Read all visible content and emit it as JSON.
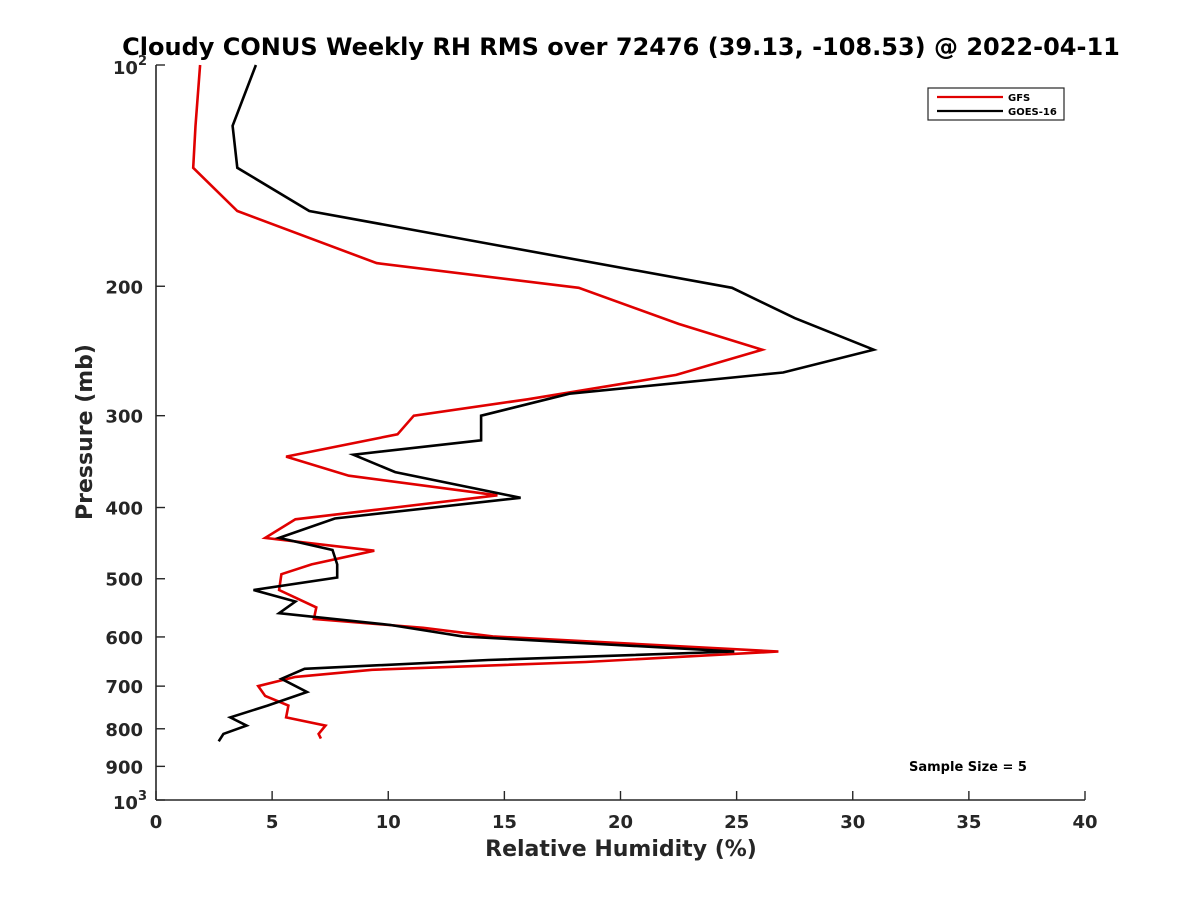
{
  "chart_data": {
    "type": "line",
    "title": "Cloudy CONUS Weekly RH RMS over 72476 (39.13, -108.53) @ 2022-04-11",
    "xlabel": "Relative Humidity (%)",
    "ylabel": "Pressure (mb)",
    "xlim": [
      0,
      40
    ],
    "ylim": [
      100,
      1000
    ],
    "y_scale": "log",
    "y_reversed": true,
    "grid": false,
    "legend_position": "top-right",
    "x_ticks": [
      0,
      5,
      10,
      15,
      20,
      25,
      30,
      35,
      40
    ],
    "x_tick_labels": [
      "0",
      "5",
      "10",
      "15",
      "20",
      "25",
      "30",
      "35",
      "40"
    ],
    "y_ticks": [
      {
        "value": 100,
        "base": "10",
        "exp": "2"
      },
      {
        "value": 200,
        "label": "200"
      },
      {
        "value": 300,
        "label": "300"
      },
      {
        "value": 400,
        "label": "400"
      },
      {
        "value": 500,
        "label": "500"
      },
      {
        "value": 600,
        "label": "600"
      },
      {
        "value": 700,
        "label": "700"
      },
      {
        "value": 800,
        "label": "800"
      },
      {
        "value": 900,
        "label": "900"
      },
      {
        "value": 1000,
        "base": "10",
        "exp": "3"
      }
    ],
    "series": [
      {
        "name": "GFS",
        "color": "#e00000",
        "points": [
          [
            1.9,
            100
          ],
          [
            1.7,
            121
          ],
          [
            1.6,
            138
          ],
          [
            3.5,
            158
          ],
          [
            9.5,
            186
          ],
          [
            18.2,
            201
          ],
          [
            22.5,
            225
          ],
          [
            26.1,
            244
          ],
          [
            22.4,
            264
          ],
          [
            16.0,
            285
          ],
          [
            11.1,
            300
          ],
          [
            10.4,
            318
          ],
          [
            5.6,
            341
          ],
          [
            8.3,
            362
          ],
          [
            14.7,
            385
          ],
          [
            6.0,
            415
          ],
          [
            4.7,
            440
          ],
          [
            9.4,
            458
          ],
          [
            6.7,
            478
          ],
          [
            5.4,
            493
          ],
          [
            5.3,
            518
          ],
          [
            6.9,
            547
          ],
          [
            6.8,
            567
          ],
          [
            11.5,
            583
          ],
          [
            14.5,
            599
          ],
          [
            26.8,
            628
          ],
          [
            18.5,
            649
          ],
          [
            9.3,
            665
          ],
          [
            6.0,
            680
          ],
          [
            4.4,
            700
          ],
          [
            4.7,
            722
          ],
          [
            5.7,
            744
          ],
          [
            5.6,
            772
          ],
          [
            7.3,
            792
          ],
          [
            7.0,
            813
          ],
          [
            7.1,
            825
          ]
        ]
      },
      {
        "name": "GOES-16",
        "color": "#000000",
        "points": [
          [
            4.3,
            100
          ],
          [
            3.3,
            121
          ],
          [
            3.5,
            138
          ],
          [
            6.6,
            158
          ],
          [
            14.3,
            175
          ],
          [
            24.8,
            201
          ],
          [
            27.5,
            221
          ],
          [
            30.9,
            244
          ],
          [
            27.0,
            262
          ],
          [
            17.8,
            280
          ],
          [
            14.0,
            300
          ],
          [
            14.0,
            324
          ],
          [
            8.5,
            339
          ],
          [
            10.3,
            358
          ],
          [
            15.7,
            388
          ],
          [
            7.7,
            414
          ],
          [
            5.3,
            440
          ],
          [
            7.6,
            457
          ],
          [
            7.8,
            478
          ],
          [
            7.8,
            498
          ],
          [
            4.2,
            518
          ],
          [
            6.0,
            537
          ],
          [
            5.3,
            557
          ],
          [
            10.1,
            578
          ],
          [
            13.2,
            599
          ],
          [
            24.9,
            628
          ],
          [
            14.3,
            645
          ],
          [
            6.4,
            663
          ],
          [
            5.4,
            684
          ],
          [
            6.5,
            713
          ],
          [
            4.8,
            744
          ],
          [
            3.2,
            772
          ],
          [
            3.9,
            792
          ],
          [
            2.9,
            813
          ],
          [
            2.7,
            832
          ]
        ]
      }
    ],
    "annotations": [
      "Sample Size = 5"
    ]
  }
}
